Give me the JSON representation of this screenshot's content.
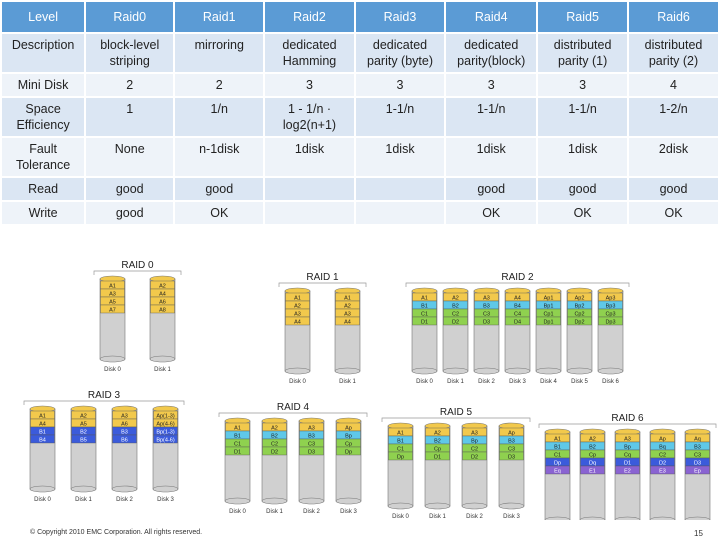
{
  "table": {
    "header": [
      "Level",
      "Raid0",
      "Raid1",
      "Raid2",
      "Raid3",
      "Raid4",
      "Raid5",
      "Raid6"
    ],
    "rows": [
      [
        "Description",
        "block-level striping",
        "mirroring",
        "dedicated Hamming",
        "dedicated parity (byte)",
        "dedicated parity(block)",
        "distributed parity (1)",
        "distributed parity (2)"
      ],
      [
        "Mini Disk",
        "2",
        "2",
        "3",
        "3",
        "3",
        "3",
        "4"
      ],
      [
        "Space Efficiency",
        "1",
        "1/n",
        "1 - 1/n · log2(n+1)",
        "1-1/n",
        "1-1/n",
        "1-1/n",
        "1-2/n"
      ],
      [
        "Fault Tolerance",
        "None",
        "n-1disk",
        "1disk",
        "1disk",
        "1disk",
        "1disk",
        "2disk"
      ],
      [
        "Read",
        "good",
        "good",
        "",
        "",
        "good",
        "good",
        "good"
      ],
      [
        "Write",
        "good",
        "OK",
        "",
        "",
        "OK",
        "OK",
        "OK"
      ]
    ]
  },
  "colors": {
    "header": "#5b9bd5",
    "row_odd": "#dbe6f3",
    "row_even": "#eef3f9",
    "yellow": "#f2c94c",
    "blue": "#3b5bdb",
    "green": "#8fd14f",
    "cyan": "#5fc8e8",
    "purple": "#8a63d2",
    "gray": "#d0d0d0"
  },
  "diagrams": [
    {
      "title": "RAID 0",
      "disks": [
        {
          "label": "Disk 0",
          "blocks": [
            {
              "t": "A1",
              "c": "yellow"
            },
            {
              "t": "A3",
              "c": "yellow"
            },
            {
              "t": "A5",
              "c": "yellow"
            },
            {
              "t": "A7",
              "c": "yellow"
            }
          ]
        },
        {
          "label": "Disk 1",
          "blocks": [
            {
              "t": "A2",
              "c": "yellow"
            },
            {
              "t": "A4",
              "c": "yellow"
            },
            {
              "t": "A6",
              "c": "yellow"
            },
            {
              "t": "A8",
              "c": "yellow"
            }
          ]
        }
      ]
    },
    {
      "title": "RAID 1",
      "disks": [
        {
          "label": "Disk 0",
          "blocks": [
            {
              "t": "A1",
              "c": "yellow"
            },
            {
              "t": "A2",
              "c": "yellow"
            },
            {
              "t": "A3",
              "c": "yellow"
            },
            {
              "t": "A4",
              "c": "yellow"
            }
          ]
        },
        {
          "label": "Disk 1",
          "blocks": [
            {
              "t": "A1",
              "c": "yellow"
            },
            {
              "t": "A2",
              "c": "yellow"
            },
            {
              "t": "A3",
              "c": "yellow"
            },
            {
              "t": "A4",
              "c": "yellow"
            }
          ]
        }
      ]
    },
    {
      "title": "RAID 2",
      "disks": [
        {
          "label": "Disk 0",
          "blocks": [
            {
              "t": "A1",
              "c": "yellow"
            },
            {
              "t": "B1",
              "c": "cyan"
            },
            {
              "t": "C1",
              "c": "green"
            },
            {
              "t": "D1",
              "c": "green"
            }
          ]
        },
        {
          "label": "Disk 1",
          "blocks": [
            {
              "t": "A2",
              "c": "yellow"
            },
            {
              "t": "B2",
              "c": "cyan"
            },
            {
              "t": "C2",
              "c": "green"
            },
            {
              "t": "D2",
              "c": "green"
            }
          ]
        },
        {
          "label": "Disk 2",
          "blocks": [
            {
              "t": "A3",
              "c": "yellow"
            },
            {
              "t": "B3",
              "c": "cyan"
            },
            {
              "t": "C3",
              "c": "green"
            },
            {
              "t": "D3",
              "c": "green"
            }
          ]
        },
        {
          "label": "Disk 3",
          "blocks": [
            {
              "t": "A4",
              "c": "yellow"
            },
            {
              "t": "B4",
              "c": "cyan"
            },
            {
              "t": "C4",
              "c": "green"
            },
            {
              "t": "D4",
              "c": "green"
            }
          ]
        },
        {
          "label": "Disk 4",
          "blocks": [
            {
              "t": "Ap1",
              "c": "yellow"
            },
            {
              "t": "Bp1",
              "c": "cyan"
            },
            {
              "t": "Cp1",
              "c": "green"
            },
            {
              "t": "Dp1",
              "c": "green"
            }
          ]
        },
        {
          "label": "Disk 5",
          "blocks": [
            {
              "t": "Ap2",
              "c": "yellow"
            },
            {
              "t": "Bp2",
              "c": "cyan"
            },
            {
              "t": "Cp2",
              "c": "green"
            },
            {
              "t": "Dp2",
              "c": "green"
            }
          ]
        },
        {
          "label": "Disk 6",
          "blocks": [
            {
              "t": "Ap3",
              "c": "yellow"
            },
            {
              "t": "Bp3",
              "c": "cyan"
            },
            {
              "t": "Cp3",
              "c": "green"
            },
            {
              "t": "Dp3",
              "c": "green"
            }
          ]
        }
      ]
    },
    {
      "title": "RAID 3",
      "disks": [
        {
          "label": "Disk 0",
          "blocks": [
            {
              "t": "A1",
              "c": "yellow"
            },
            {
              "t": "A4",
              "c": "yellow"
            },
            {
              "t": "B1",
              "c": "blue"
            },
            {
              "t": "B4",
              "c": "blue"
            }
          ]
        },
        {
          "label": "Disk 1",
          "blocks": [
            {
              "t": "A2",
              "c": "yellow"
            },
            {
              "t": "A5",
              "c": "yellow"
            },
            {
              "t": "B2",
              "c": "blue"
            },
            {
              "t": "B5",
              "c": "blue"
            }
          ]
        },
        {
          "label": "Disk 2",
          "blocks": [
            {
              "t": "A3",
              "c": "yellow"
            },
            {
              "t": "A6",
              "c": "yellow"
            },
            {
              "t": "B3",
              "c": "blue"
            },
            {
              "t": "B6",
              "c": "blue"
            }
          ]
        },
        {
          "label": "Disk 3",
          "blocks": [
            {
              "t": "Ap(1-3)",
              "c": "yellow"
            },
            {
              "t": "Ap(4-6)",
              "c": "yellow"
            },
            {
              "t": "Bp(1-3)",
              "c": "blue"
            },
            {
              "t": "Bp(4-6)",
              "c": "blue"
            }
          ]
        }
      ]
    },
    {
      "title": "RAID 4",
      "disks": [
        {
          "label": "Disk 0",
          "blocks": [
            {
              "t": "A1",
              "c": "yellow"
            },
            {
              "t": "B1",
              "c": "cyan"
            },
            {
              "t": "C1",
              "c": "green"
            },
            {
              "t": "D1",
              "c": "green"
            }
          ]
        },
        {
          "label": "Disk 1",
          "blocks": [
            {
              "t": "A2",
              "c": "yellow"
            },
            {
              "t": "B2",
              "c": "cyan"
            },
            {
              "t": "C2",
              "c": "green"
            },
            {
              "t": "D2",
              "c": "green"
            }
          ]
        },
        {
          "label": "Disk 2",
          "blocks": [
            {
              "t": "A3",
              "c": "yellow"
            },
            {
              "t": "B3",
              "c": "cyan"
            },
            {
              "t": "C3",
              "c": "green"
            },
            {
              "t": "D3",
              "c": "green"
            }
          ]
        },
        {
          "label": "Disk 3",
          "blocks": [
            {
              "t": "Ap",
              "c": "yellow"
            },
            {
              "t": "Bp",
              "c": "cyan"
            },
            {
              "t": "Cp",
              "c": "green"
            },
            {
              "t": "Dp",
              "c": "green"
            }
          ]
        }
      ]
    },
    {
      "title": "RAID 5",
      "disks": [
        {
          "label": "Disk 0",
          "blocks": [
            {
              "t": "A1",
              "c": "yellow"
            },
            {
              "t": "B1",
              "c": "cyan"
            },
            {
              "t": "C1",
              "c": "green"
            },
            {
              "t": "Dp",
              "c": "green"
            }
          ]
        },
        {
          "label": "Disk 1",
          "blocks": [
            {
              "t": "A2",
              "c": "yellow"
            },
            {
              "t": "B2",
              "c": "cyan"
            },
            {
              "t": "Cp",
              "c": "green"
            },
            {
              "t": "D1",
              "c": "green"
            }
          ]
        },
        {
          "label": "Disk 2",
          "blocks": [
            {
              "t": "A3",
              "c": "yellow"
            },
            {
              "t": "Bp",
              "c": "cyan"
            },
            {
              "t": "C2",
              "c": "green"
            },
            {
              "t": "D2",
              "c": "green"
            }
          ]
        },
        {
          "label": "Disk 3",
          "blocks": [
            {
              "t": "Ap",
              "c": "yellow"
            },
            {
              "t": "B3",
              "c": "cyan"
            },
            {
              "t": "C3",
              "c": "green"
            },
            {
              "t": "D3",
              "c": "green"
            }
          ]
        }
      ]
    },
    {
      "title": "RAID 6",
      "disks": [
        {
          "label": "Disk 0",
          "blocks": [
            {
              "t": "A1",
              "c": "yellow"
            },
            {
              "t": "B1",
              "c": "cyan"
            },
            {
              "t": "C1",
              "c": "green"
            },
            {
              "t": "Dp",
              "c": "blue"
            },
            {
              "t": "Eq",
              "c": "purple"
            }
          ]
        },
        {
          "label": "Disk 1",
          "blocks": [
            {
              "t": "A2",
              "c": "yellow"
            },
            {
              "t": "B2",
              "c": "cyan"
            },
            {
              "t": "Cp",
              "c": "green"
            },
            {
              "t": "Dq",
              "c": "blue"
            },
            {
              "t": "E1",
              "c": "purple"
            }
          ]
        },
        {
          "label": "Disk 2",
          "blocks": [
            {
              "t": "A3",
              "c": "yellow"
            },
            {
              "t": "Bp",
              "c": "cyan"
            },
            {
              "t": "Cq",
              "c": "green"
            },
            {
              "t": "D1",
              "c": "blue"
            },
            {
              "t": "E2",
              "c": "purple"
            }
          ]
        },
        {
          "label": "Disk 3",
          "blocks": [
            {
              "t": "Ap",
              "c": "yellow"
            },
            {
              "t": "Bq",
              "c": "cyan"
            },
            {
              "t": "C2",
              "c": "green"
            },
            {
              "t": "D2",
              "c": "blue"
            },
            {
              "t": "E3",
              "c": "purple"
            }
          ]
        },
        {
          "label": "Disk 4",
          "blocks": [
            {
              "t": "Aq",
              "c": "yellow"
            },
            {
              "t": "B3",
              "c": "cyan"
            },
            {
              "t": "C3",
              "c": "green"
            },
            {
              "t": "D3",
              "c": "blue"
            },
            {
              "t": "Ep",
              "c": "purple"
            }
          ]
        }
      ]
    }
  ],
  "footer": {
    "copyright": "© Copyright 2010 EMC Corporation. All rights reserved.",
    "page": "15"
  }
}
